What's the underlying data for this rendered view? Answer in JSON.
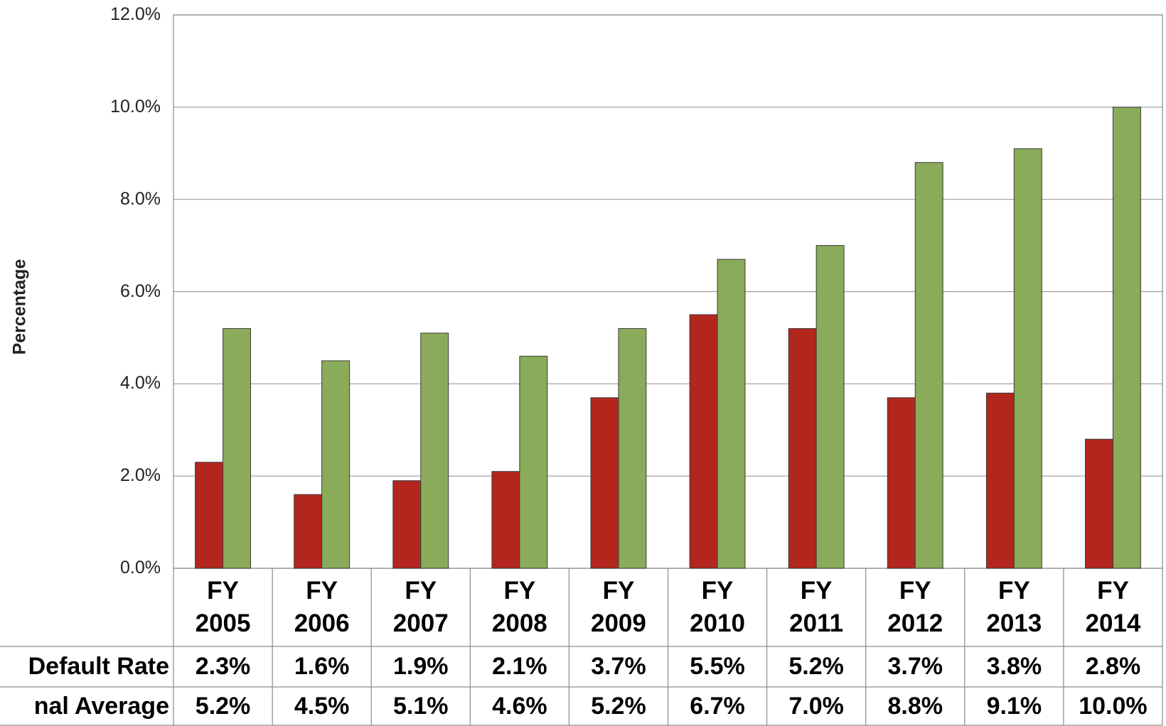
{
  "chart_data": {
    "type": "bar",
    "y_label": "Percentage",
    "categories": [
      "FY 2005",
      "FY 2006",
      "FY 2007",
      "FY 2008",
      "FY 2009",
      "FY 2010",
      "FY 2011",
      "FY 2012",
      "FY 2013",
      "FY 2014"
    ],
    "series": [
      {
        "name": "Default Rate",
        "color": "#b3261e",
        "values": [
          2.3,
          1.6,
          1.9,
          2.1,
          3.7,
          5.5,
          5.2,
          3.7,
          3.8,
          2.8
        ],
        "value_labels": [
          "2.3%",
          "1.6%",
          "1.9%",
          "2.1%",
          "3.7%",
          "5.5%",
          "5.2%",
          "3.7%",
          "3.8%",
          "2.8%"
        ]
      },
      {
        "name": "nal Average",
        "color": "#8aab5a",
        "values": [
          5.2,
          4.5,
          5.1,
          4.6,
          5.2,
          6.7,
          7.0,
          8.8,
          9.1,
          10.0
        ],
        "value_labels": [
          "5.2%",
          "4.5%",
          "5.1%",
          "4.6%",
          "5.2%",
          "6.7%",
          "7.0%",
          "8.8%",
          "9.1%",
          "10.0%"
        ]
      }
    ],
    "ylim": [
      0,
      12
    ],
    "yticks": [
      {
        "value": 0,
        "label": "0.0%"
      },
      {
        "value": 2,
        "label": "2.0%"
      },
      {
        "value": 4,
        "label": "4.0%"
      },
      {
        "value": 6,
        "label": "6.0%"
      },
      {
        "value": 8,
        "label": "8.0%"
      },
      {
        "value": 10,
        "label": "10.0%"
      },
      {
        "value": 12,
        "label": "12.0%"
      }
    ],
    "grid": true
  }
}
